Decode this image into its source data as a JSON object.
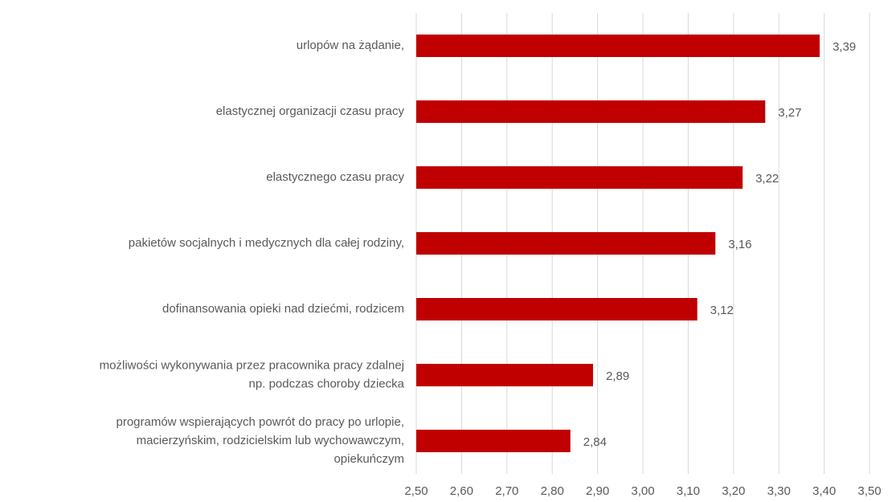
{
  "chart_data": {
    "type": "barh",
    "categories": [
      "urlopów na żądanie,",
      "elastycznej organizacji czasu pracy",
      "elastycznego czasu pracy",
      "pakietów socjalnych i medycznych dla całej rodziny,",
      "dofinansowania opieki nad dziećmi, rodzicem",
      "możliwości wykonywania przez pracownika pracy zdalnej\nnp. podczas choroby dziecka",
      "programów wspierających powrót do pracy po urlopie,\nmacierzyńskim, rodzicielskim lub wychowawczym,\nopiekuńczym"
    ],
    "values": [
      3.39,
      3.27,
      3.22,
      3.16,
      3.12,
      2.89,
      2.84
    ],
    "value_labels": [
      "3,39",
      "3,27",
      "3,22",
      "3,16",
      "3,12",
      "2,89",
      "2,84"
    ],
    "color": "#c00000",
    "xlim": [
      2.5,
      3.5
    ],
    "xticks": [
      {
        "value": 2.5,
        "label": "2,50"
      },
      {
        "value": 2.6,
        "label": "2,60"
      },
      {
        "value": 2.7,
        "label": "2,70"
      },
      {
        "value": 2.8,
        "label": "2,80"
      },
      {
        "value": 2.9,
        "label": "2,90"
      },
      {
        "value": 3.0,
        "label": "3,00"
      },
      {
        "value": 3.1,
        "label": "3,10"
      },
      {
        "value": 3.2,
        "label": "3,20"
      },
      {
        "value": 3.3,
        "label": "3,30"
      },
      {
        "value": 3.4,
        "label": "3,40"
      },
      {
        "value": 3.5,
        "label": "3,50"
      }
    ],
    "grid": true
  }
}
